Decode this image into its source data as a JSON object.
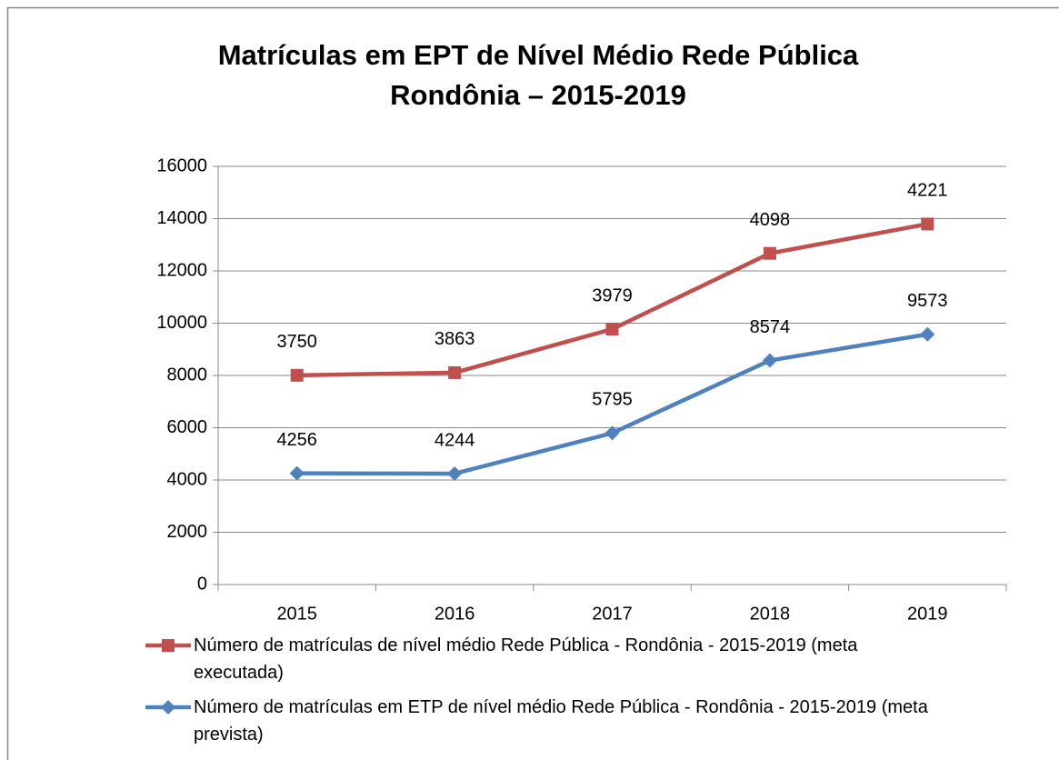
{
  "chart_data": {
    "type": "line",
    "stacked": true,
    "title": [
      "Matrículas em EPT de Nível Médio Rede Pública",
      "Rondônia – 2015-2019"
    ],
    "categories": [
      "2015",
      "2016",
      "2017",
      "2018",
      "2019"
    ],
    "series": [
      {
        "name": "Número de matrículas de nível médio Rede Pública - Rondônia - 2015-2019 (meta executada)",
        "color": "#c0504d",
        "marker": "square",
        "values": [
          3750,
          3863,
          3979,
          4098,
          4221
        ]
      },
      {
        "name": "Número de matrículas em ETP de nível médio Rede Pública - Rondônia - 2015-2019 (meta prevista)",
        "color": "#4f81bd",
        "marker": "diamond",
        "values": [
          4256,
          4244,
          5795,
          8574,
          9573
        ]
      }
    ],
    "ylim": [
      0,
      16000
    ],
    "yticks": [
      0,
      2000,
      4000,
      6000,
      8000,
      10000,
      12000,
      14000,
      16000
    ],
    "grid": true,
    "legend": "bottom"
  }
}
